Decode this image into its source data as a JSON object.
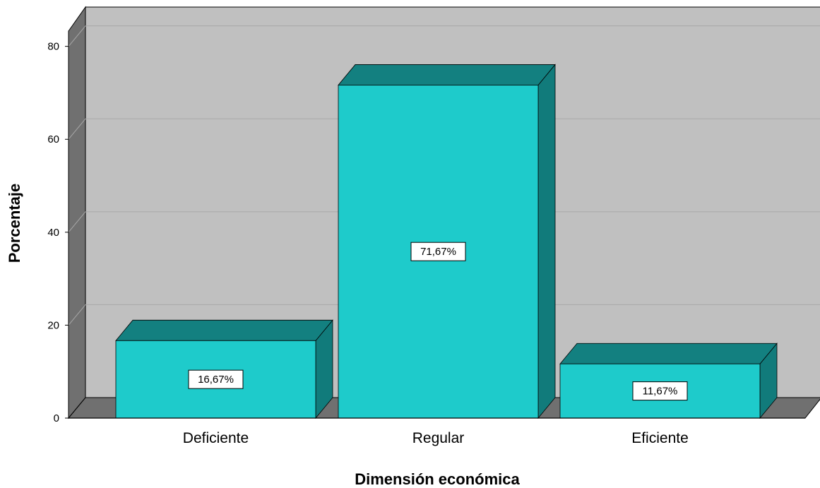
{
  "chart_data": {
    "type": "bar",
    "style": "3d",
    "categories": [
      "Deficiente",
      "Regular",
      "Eficiente"
    ],
    "values": [
      16.67,
      71.67,
      11.67
    ],
    "data_labels": [
      "16,67%",
      "71,67%",
      "11,67%"
    ],
    "xlabel": "Dimensión económica",
    "ylabel": "Porcentaje",
    "ylim": [
      0,
      80
    ],
    "yticks": [
      "0",
      "20",
      "40",
      "60",
      "80"
    ],
    "grid": true,
    "legend": "none"
  },
  "colors": {
    "bar_front": "#1ecbcb",
    "bar_top": "#138080",
    "bar_side": "#117b7b",
    "wall_back": "#c0c0c0",
    "wall_side": "#707070",
    "floor": "#707070",
    "grid": "#a8a8a8"
  }
}
